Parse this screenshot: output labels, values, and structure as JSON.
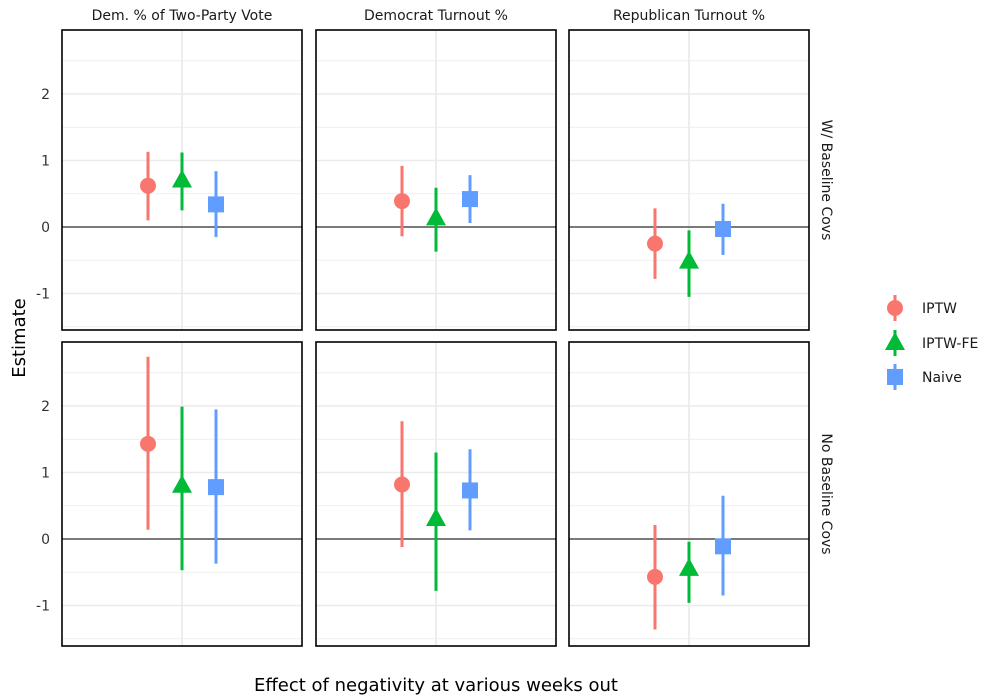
{
  "chart_data": {
    "type": "scatter",
    "subtype": "faceted point-range",
    "xlabel": "Effect of negativity at various weeks out",
    "ylabel": "Estimate",
    "ylim": [
      -1.6,
      2.9
    ],
    "yticks": [
      "2",
      "1",
      "0",
      "-1"
    ],
    "grid": true,
    "legend_position": "right",
    "columns": [
      "Dem. % of Two-Party Vote",
      "Democrat Turnout %",
      "Republican Turnout %"
    ],
    "rows": [
      "W/ Baseline Covs",
      "No Baseline Covs"
    ],
    "series": [
      {
        "name": "IPTW",
        "color": "#F8766D",
        "shape": "circle"
      },
      {
        "name": "IPTW-FE",
        "color": "#00BA38",
        "shape": "triangle"
      },
      {
        "name": "Naive",
        "color": "#619CFF",
        "shape": "square"
      }
    ],
    "panels": [
      {
        "row": 0,
        "col": 0,
        "points": [
          {
            "series": 0,
            "est": 0.62,
            "lo": 0.1,
            "hi": 1.13
          },
          {
            "series": 1,
            "est": 0.7,
            "lo": 0.25,
            "hi": 1.12
          },
          {
            "series": 2,
            "est": 0.34,
            "lo": -0.15,
            "hi": 0.84
          }
        ]
      },
      {
        "row": 0,
        "col": 1,
        "points": [
          {
            "series": 0,
            "est": 0.39,
            "lo": -0.14,
            "hi": 0.92
          },
          {
            "series": 1,
            "est": 0.13,
            "lo": -0.37,
            "hi": 0.59
          },
          {
            "series": 2,
            "est": 0.42,
            "lo": 0.06,
            "hi": 0.78
          }
        ]
      },
      {
        "row": 0,
        "col": 2,
        "points": [
          {
            "series": 0,
            "est": -0.25,
            "lo": -0.78,
            "hi": 0.28
          },
          {
            "series": 1,
            "est": -0.52,
            "lo": -1.05,
            "hi": -0.05
          },
          {
            "series": 2,
            "est": -0.03,
            "lo": -0.42,
            "hi": 0.35
          }
        ]
      },
      {
        "row": 1,
        "col": 0,
        "points": [
          {
            "series": 0,
            "est": 1.43,
            "lo": 0.14,
            "hi": 2.74
          },
          {
            "series": 1,
            "est": 0.8,
            "lo": -0.47,
            "hi": 1.99
          },
          {
            "series": 2,
            "est": 0.78,
            "lo": -0.37,
            "hi": 1.95
          }
        ]
      },
      {
        "row": 1,
        "col": 1,
        "points": [
          {
            "series": 0,
            "est": 0.82,
            "lo": -0.12,
            "hi": 1.77
          },
          {
            "series": 1,
            "est": 0.3,
            "lo": -0.78,
            "hi": 1.3
          },
          {
            "series": 2,
            "est": 0.73,
            "lo": 0.13,
            "hi": 1.35
          }
        ]
      },
      {
        "row": 1,
        "col": 2,
        "points": [
          {
            "series": 0,
            "est": -0.57,
            "lo": -1.36,
            "hi": 0.21
          },
          {
            "series": 1,
            "est": -0.45,
            "lo": -0.96,
            "hi": -0.04
          },
          {
            "series": 2,
            "est": -0.11,
            "lo": -0.85,
            "hi": 0.65
          }
        ]
      }
    ]
  }
}
